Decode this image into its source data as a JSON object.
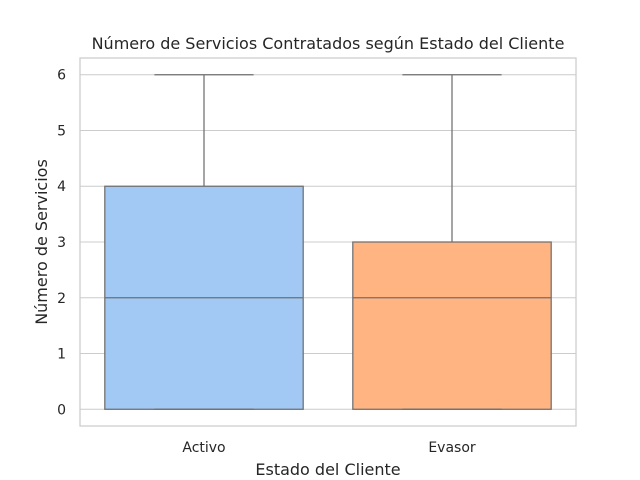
{
  "chart_data": {
    "type": "box",
    "title": "Número de Servicios Contratados según Estado del Cliente",
    "xlabel": "Estado del Cliente",
    "ylabel": "Número de Servicios",
    "categories": [
      "Activo",
      "Evasor"
    ],
    "boxes": [
      {
        "category": "Activo",
        "min": 0,
        "q1": 0,
        "median": 2,
        "q3": 4,
        "max": 6,
        "color": "#a1c9f4"
      },
      {
        "category": "Evasor",
        "min": 0,
        "q1": 0,
        "median": 2,
        "q3": 3,
        "max": 6,
        "color": "#ffb482"
      }
    ],
    "yticks": [
      0,
      1,
      2,
      3,
      4,
      5,
      6
    ],
    "ylim": [
      -0.3,
      6.3
    ],
    "grid": true
  }
}
